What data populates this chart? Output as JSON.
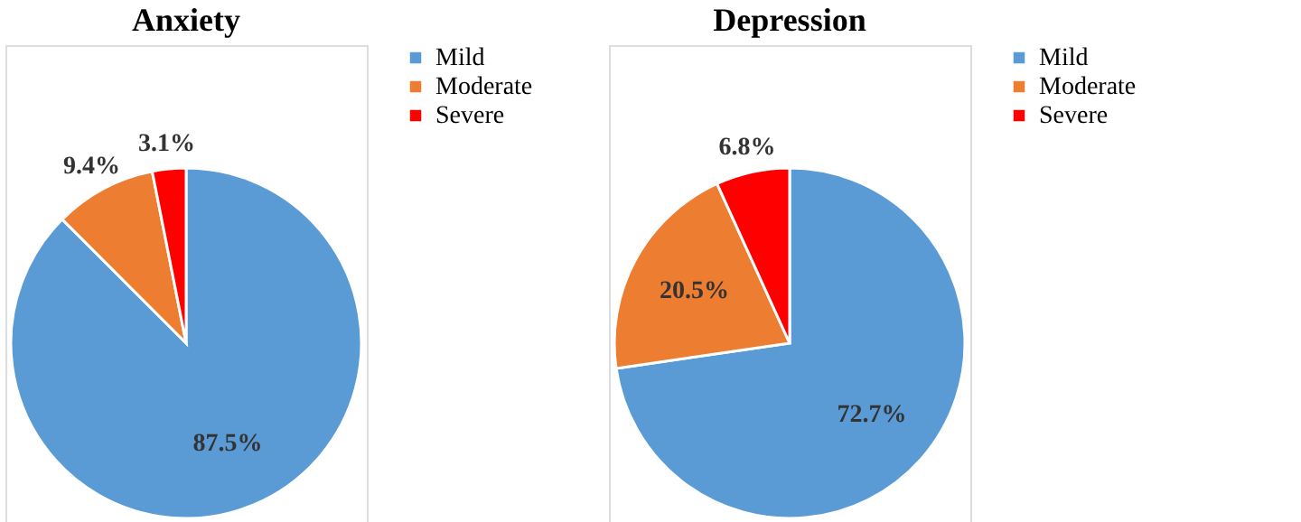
{
  "chart_data": [
    {
      "type": "pie",
      "title": "Anxiety",
      "categories": [
        "Mild",
        "Moderate",
        "Severe"
      ],
      "values": [
        87.5,
        9.4,
        3.1
      ],
      "colors": [
        "#5b9bd5",
        "#ed7d31",
        "#ff0000"
      ],
      "value_labels": [
        "87.5%",
        "9.4%",
        "3.1%"
      ],
      "legend": "right"
    },
    {
      "type": "pie",
      "title": "Depression",
      "categories": [
        "Mild",
        "Moderate",
        "Severe"
      ],
      "values": [
        72.7,
        20.5,
        6.8
      ],
      "colors": [
        "#5b9bd5",
        "#ed7d31",
        "#ff0000"
      ],
      "value_labels": [
        "72.7%",
        "20.5%",
        "6.8%"
      ],
      "legend": "right"
    }
  ]
}
